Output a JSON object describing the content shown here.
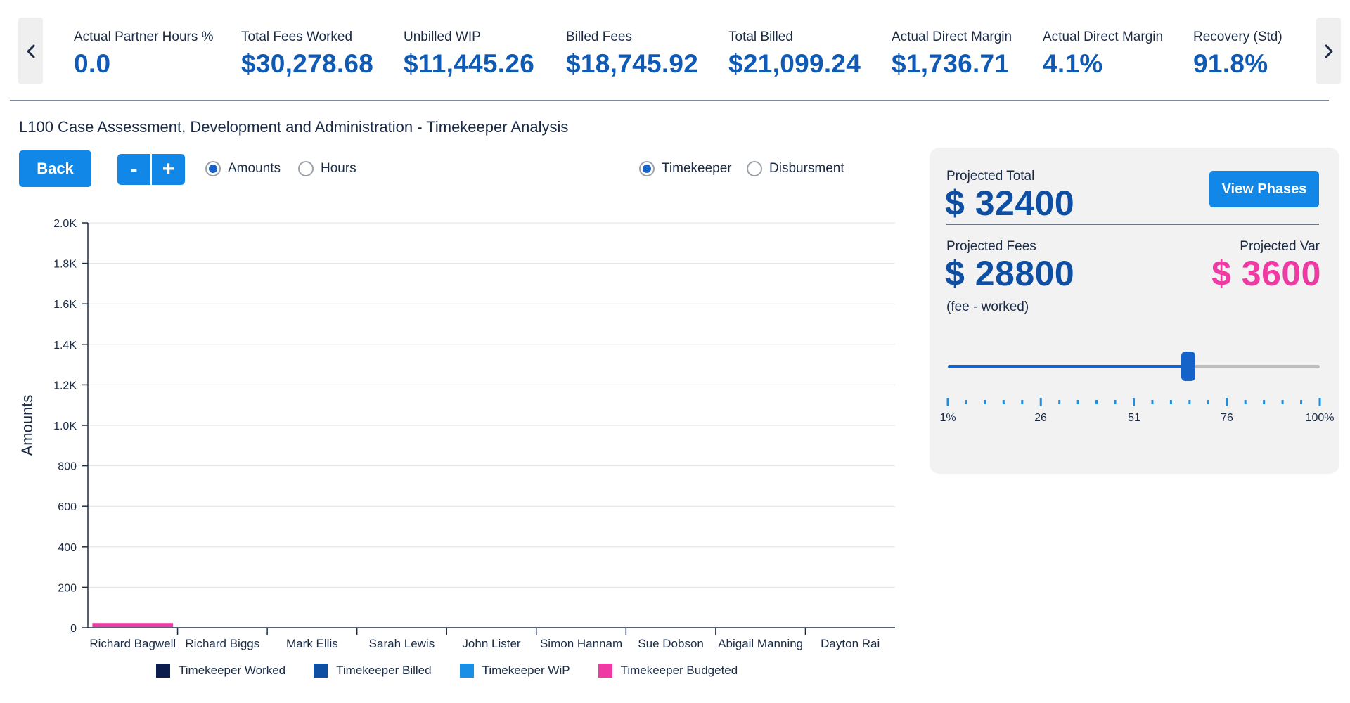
{
  "kpis": [
    {
      "label": "Actual Partner Hours %",
      "value": "0.0"
    },
    {
      "label": "Total Fees Worked",
      "value": "$30,278.68"
    },
    {
      "label": "Unbilled WIP",
      "value": "$11,445.26"
    },
    {
      "label": "Billed Fees",
      "value": "$18,745.92"
    },
    {
      "label": "Total Billed",
      "value": "$21,099.24"
    },
    {
      "label": "Actual Direct Margin",
      "value": "$1,736.71"
    },
    {
      "label": "Actual Direct Margin",
      "value": "4.1%"
    },
    {
      "label": "Recovery (Std)",
      "value": "91.8%"
    }
  ],
  "nav": {
    "prev_icon": "chevron-left-icon",
    "next_icon": "chevron-right-icon"
  },
  "page_title": "L100 Case Assessment, Development and Administration - Timekeeper Analysis",
  "controls": {
    "back_label": "Back",
    "zoom_out_label": "-",
    "zoom_in_label": "+",
    "measure_options": [
      {
        "label": "Amounts",
        "checked": true
      },
      {
        "label": "Hours",
        "checked": false
      }
    ],
    "type_options": [
      {
        "label": "Timekeeper",
        "checked": true
      },
      {
        "label": "Disbursment",
        "checked": false
      }
    ]
  },
  "chart_data": {
    "type": "bar",
    "title": "",
    "xlabel": "",
    "ylabel": "Amounts",
    "ylim": [
      0,
      2000
    ],
    "yticks": [
      0,
      200,
      400,
      600,
      800,
      1000,
      1200,
      1400,
      1600,
      1800,
      2000
    ],
    "ytick_labels": [
      "0",
      "200",
      "400",
      "600",
      "800",
      "1.0K",
      "1.2K",
      "1.4K",
      "1.6K",
      "1.8K",
      "2.0K"
    ],
    "grid": true,
    "legend_position": "bottom",
    "categories": [
      "Richard Bagwell",
      "Richard Biggs",
      "Mark Ellis",
      "Sarah Lewis",
      "John Lister",
      "Simon Hannam",
      "Sue Dobson",
      "Abigail Manning",
      "Dayton Rai"
    ],
    "series": [
      {
        "name": "Timekeeper Worked",
        "color": "#0c1c4d",
        "values": [
          0,
          0,
          0,
          0,
          0,
          0,
          0,
          0,
          0
        ]
      },
      {
        "name": "Timekeeper Billed",
        "color": "#0f4fa3",
        "values": [
          0,
          0,
          0,
          0,
          0,
          0,
          0,
          0,
          0
        ]
      },
      {
        "name": "Timekeeper WiP",
        "color": "#1a8fe6",
        "values": [
          0,
          0,
          0,
          0,
          0,
          0,
          0,
          0,
          0
        ]
      },
      {
        "name": "Timekeeper Budgeted",
        "color": "#ef3aa3",
        "values": [
          20,
          0,
          0,
          0,
          0,
          0,
          0,
          0,
          0
        ]
      }
    ]
  },
  "projection": {
    "total_label": "Projected Total",
    "total_value": "$ 32400",
    "view_phases_label": "View Phases",
    "fees_label": "Projected Fees",
    "fees_value": "$ 28800",
    "fees_note": "(fee - worked)",
    "var_label": "Projected Var",
    "var_value": "$ 3600",
    "slider_percent": 65,
    "scale_min": 1,
    "scale_max": 100,
    "scale_labels": [
      "1%",
      "26",
      "51",
      "76",
      "100%"
    ]
  },
  "colors": {
    "accent": "#1188e8",
    "kpi_value": "#0f5ab5",
    "positive": "#0f4fa3",
    "variance": "#ef3aa3"
  }
}
